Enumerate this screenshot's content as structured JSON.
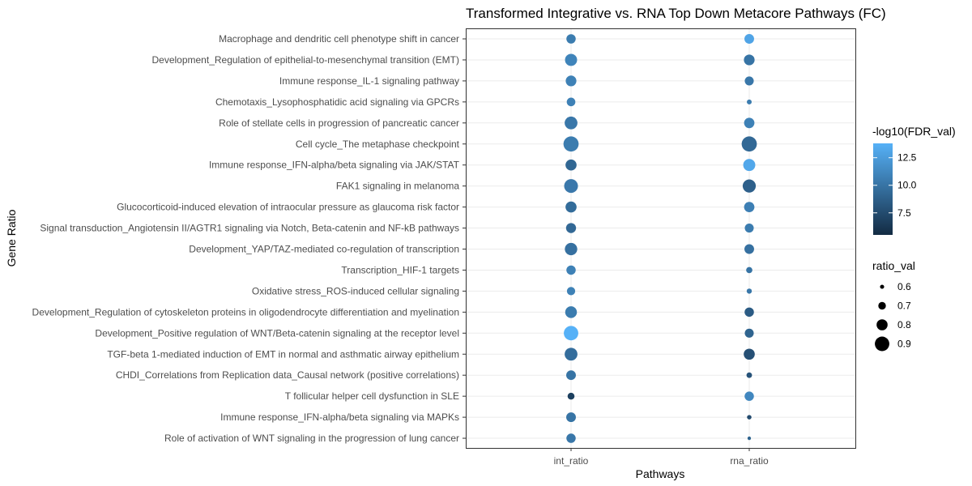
{
  "chart_data": {
    "type": "scatter",
    "title": "Transformed Integrative vs. RNA Top Down Metacore Pathways (FC)",
    "xlabel": "Pathways",
    "ylabel": "Gene Ratio",
    "x_categories": [
      "int_ratio",
      "rna_ratio"
    ],
    "y_categories": [
      "Macrophage and dendritic cell phenotype shift in cancer",
      "Development_Regulation of epithelial-to-mesenchymal transition (EMT)",
      "Immune response_IL-1 signaling pathway",
      "Chemotaxis_Lysophosphatidic acid signaling via GPCRs",
      "Role of stellate cells in progression of pancreatic cancer",
      "Cell cycle_The metaphase checkpoint",
      "Immune response_IFN-alpha/beta signaling via JAK/STAT",
      "FAK1 signaling in melanoma",
      "Glucocorticoid-induced elevation of intraocular pressure as glaucoma risk factor",
      "Signal transduction_Angiotensin II/AGTR1 signaling via Notch, Beta-catenin and NF-kB pathways",
      "Development_YAP/TAZ-mediated co-regulation of transcription",
      "Transcription_HIF-1 targets",
      "Oxidative stress_ROS-induced cellular signaling",
      "Development_Regulation of cytoskeleton proteins in oligodendrocyte differentiation and myelination",
      "Development_Positive regulation of WNT/Beta-catenin signaling at the receptor level",
      "TGF-beta 1-mediated induction of EMT in normal and asthmatic airway epithelium",
      "CHDI_Correlations from Replication data_Causal network (positive correlations)",
      "T follicular helper cell dysfunction in SLE",
      "Immune response_IFN-alpha/beta signaling via MAPKs",
      "Role of activation of WNT signaling in the progression of lung cancer"
    ],
    "series": [
      {
        "name": "int_ratio",
        "ratio_val": [
          0.75,
          0.83,
          0.79,
          0.73,
          0.85,
          0.92,
          0.8,
          0.88,
          0.8,
          0.77,
          0.84,
          0.75,
          0.72,
          0.82,
          0.9,
          0.85,
          0.76,
          0.68,
          0.76,
          0.75
        ],
        "fdr": [
          10.5,
          11.0,
          10.8,
          10.8,
          10.2,
          10.5,
          9.2,
          10.3,
          9.5,
          9.3,
          9.8,
          10.8,
          10.8,
          10.5,
          14.0,
          9.6,
          10.0,
          6.8,
          10.0,
          10.2
        ]
      },
      {
        "name": "rna_ratio",
        "ratio_val": [
          0.76,
          0.79,
          0.74,
          0.62,
          0.78,
          0.92,
          0.83,
          0.86,
          0.78,
          0.74,
          0.76,
          0.66,
          0.63,
          0.75,
          0.74,
          0.8,
          0.64,
          0.75,
          0.61,
          0.58
        ],
        "fdr": [
          13.0,
          10.0,
          10.2,
          10.5,
          10.8,
          9.3,
          13.2,
          8.8,
          10.7,
          10.5,
          9.8,
          10.0,
          10.2,
          8.5,
          9.0,
          7.8,
          8.0,
          11.2,
          7.5,
          9.0
        ]
      }
    ],
    "color_legend": {
      "title": "-log10(FDR_val)",
      "ticks": [
        7.5,
        10.0,
        12.5
      ],
      "range": [
        5.5,
        13.8
      ],
      "low_color": "#132b43",
      "high_color": "#56b1f7"
    },
    "size_legend": {
      "title": "ratio_val",
      "ticks": [
        0.6,
        0.7,
        0.8,
        0.9
      ],
      "range": [
        0.55,
        0.95
      ]
    },
    "grid": true,
    "legend_position": "right"
  }
}
